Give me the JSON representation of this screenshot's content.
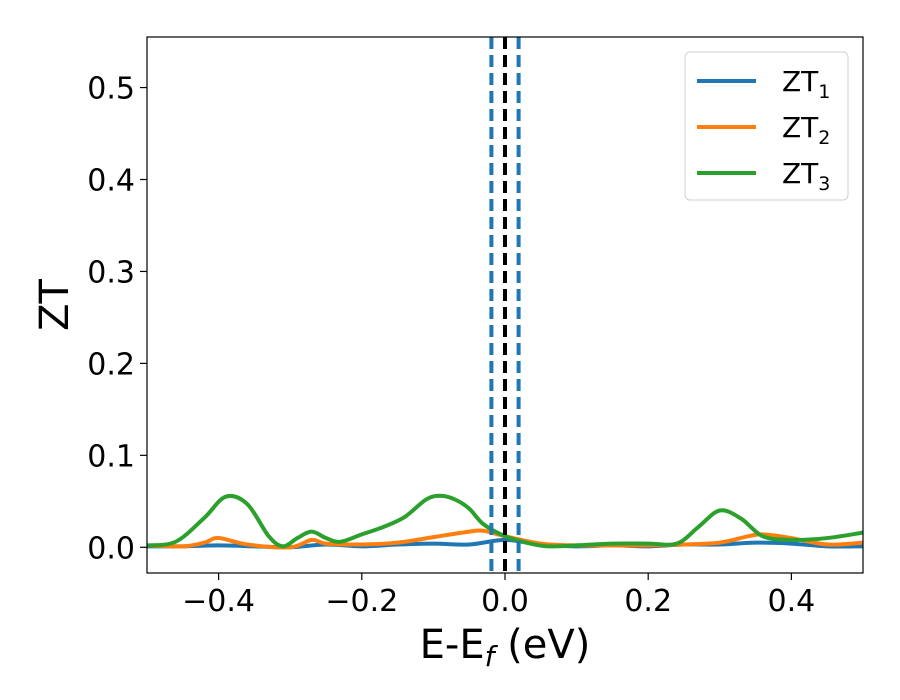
{
  "chart_data": {
    "type": "line",
    "xlabel": "E-E_f (eV)",
    "xlabel_parts": {
      "main": "E-E",
      "sub": "f",
      "tail": " (eV)"
    },
    "ylabel": "ZT",
    "xlim": [
      -0.5,
      0.5
    ],
    "ylim": [
      -0.028,
      0.555
    ],
    "xticks": [
      -0.4,
      -0.2,
      0.0,
      0.2,
      0.4
    ],
    "xtick_labels": [
      "−0.4",
      "−0.2",
      "0.0",
      "0.2",
      "0.4"
    ],
    "yticks": [
      0.0,
      0.1,
      0.2,
      0.3,
      0.4,
      0.5
    ],
    "ytick_labels": [
      "0.0",
      "0.1",
      "0.2",
      "0.3",
      "0.4",
      "0.5"
    ],
    "grid": false,
    "legend_position": "top-right",
    "vertical_lines": [
      {
        "x": -0.019,
        "color": "#1f77b4",
        "style": "dashed"
      },
      {
        "x": 0.0,
        "color": "#000000",
        "style": "dashed"
      },
      {
        "x": 0.019,
        "color": "#1f77b4",
        "style": "dashed"
      }
    ],
    "series": [
      {
        "name": "ZT_1",
        "label_main": "ZT",
        "label_sub": "1",
        "color": "#1f77b4",
        "x": [
          -0.5,
          -0.45,
          -0.4,
          -0.35,
          -0.3,
          -0.25,
          -0.2,
          -0.15,
          -0.1,
          -0.05,
          0.0,
          0.05,
          0.1,
          0.15,
          0.2,
          0.25,
          0.3,
          0.35,
          0.4,
          0.45,
          0.5
        ],
        "y": [
          0.001,
          0.001,
          0.002,
          0.001,
          0.0,
          0.003,
          0.001,
          0.003,
          0.004,
          0.003,
          0.008,
          0.003,
          0.001,
          0.002,
          0.001,
          0.003,
          0.003,
          0.005,
          0.004,
          0.001,
          0.001
        ]
      },
      {
        "name": "ZT_2",
        "label_main": "ZT",
        "label_sub": "2",
        "color": "#ff7f0e",
        "x": [
          -0.5,
          -0.45,
          -0.42,
          -0.4,
          -0.36,
          -0.3,
          -0.27,
          -0.25,
          -0.2,
          -0.15,
          -0.1,
          -0.05,
          -0.03,
          0.0,
          0.05,
          0.1,
          0.15,
          0.2,
          0.25,
          0.3,
          0.34,
          0.36,
          0.4,
          0.45,
          0.5
        ],
        "y": [
          0.002,
          0.001,
          0.005,
          0.01,
          0.003,
          0.0,
          0.008,
          0.004,
          0.003,
          0.005,
          0.011,
          0.017,
          0.018,
          0.012,
          0.004,
          0.002,
          0.002,
          0.002,
          0.003,
          0.005,
          0.012,
          0.014,
          0.01,
          0.003,
          0.005
        ]
      },
      {
        "name": "ZT_3",
        "label_main": "ZT",
        "label_sub": "3",
        "color": "#2ca02c",
        "x": [
          -0.5,
          -0.46,
          -0.42,
          -0.39,
          -0.36,
          -0.33,
          -0.31,
          -0.29,
          -0.27,
          -0.25,
          -0.23,
          -0.2,
          -0.17,
          -0.14,
          -0.11,
          -0.09,
          -0.07,
          -0.05,
          -0.03,
          0.0,
          0.03,
          0.06,
          0.1,
          0.15,
          0.2,
          0.24,
          0.27,
          0.3,
          0.33,
          0.36,
          0.4,
          0.45,
          0.5
        ],
        "y": [
          0.002,
          0.006,
          0.032,
          0.055,
          0.047,
          0.012,
          0.001,
          0.01,
          0.017,
          0.01,
          0.006,
          0.014,
          0.022,
          0.033,
          0.052,
          0.056,
          0.052,
          0.042,
          0.025,
          0.012,
          0.005,
          0.001,
          0.002,
          0.004,
          0.004,
          0.004,
          0.022,
          0.04,
          0.031,
          0.012,
          0.008,
          0.01,
          0.016
        ]
      }
    ]
  }
}
